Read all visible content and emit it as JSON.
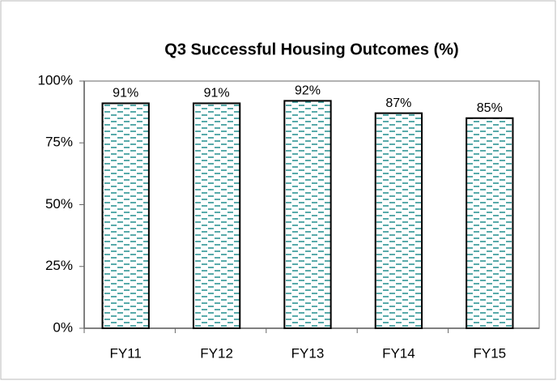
{
  "chart_data": {
    "type": "bar",
    "title": "Q3 Successful Housing Outcomes (%)",
    "categories": [
      "FY11",
      "FY12",
      "FY13",
      "FY14",
      "FY15"
    ],
    "values": [
      91,
      91,
      92,
      87,
      85
    ],
    "value_labels": [
      "91%",
      "91%",
      "92%",
      "87%",
      "85%"
    ],
    "color": "#2f9595",
    "ylim": [
      0,
      100
    ],
    "yticks": [
      {
        "value": 0,
        "label": "0%"
      },
      {
        "value": 25,
        "label": "25%"
      },
      {
        "value": 50,
        "label": "50%"
      },
      {
        "value": 75,
        "label": "75%"
      },
      {
        "value": 100,
        "label": "100%"
      }
    ],
    "grid": false
  }
}
